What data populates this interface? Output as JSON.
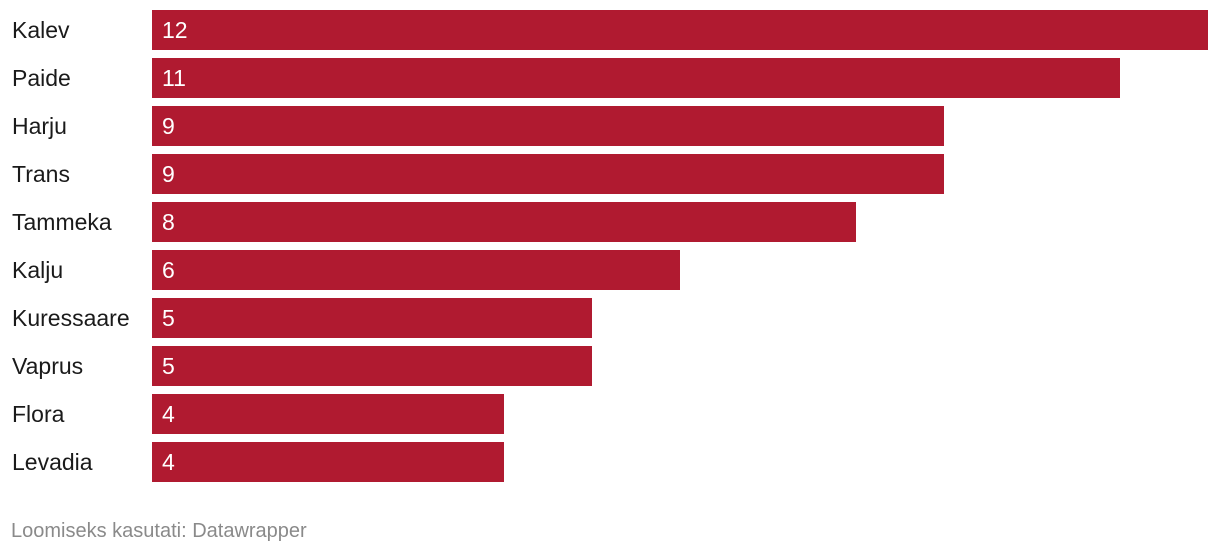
{
  "chart_data": {
    "type": "bar",
    "orientation": "horizontal",
    "categories": [
      "Kalev",
      "Paide",
      "Harju",
      "Trans",
      "Tammeka",
      "Kalju",
      "Kuressaare",
      "Vaprus",
      "Flora",
      "Levadia"
    ],
    "values": [
      12,
      11,
      9,
      9,
      8,
      6,
      5,
      5,
      4,
      4
    ],
    "title": "",
    "xlabel": "",
    "ylabel": "",
    "xlim": [
      0,
      12
    ],
    "grid": false,
    "data_labels": "inside-start",
    "bar_color": "#b01a30"
  },
  "footer": {
    "credit": "Loomiseks kasutati: Datawrapper"
  }
}
